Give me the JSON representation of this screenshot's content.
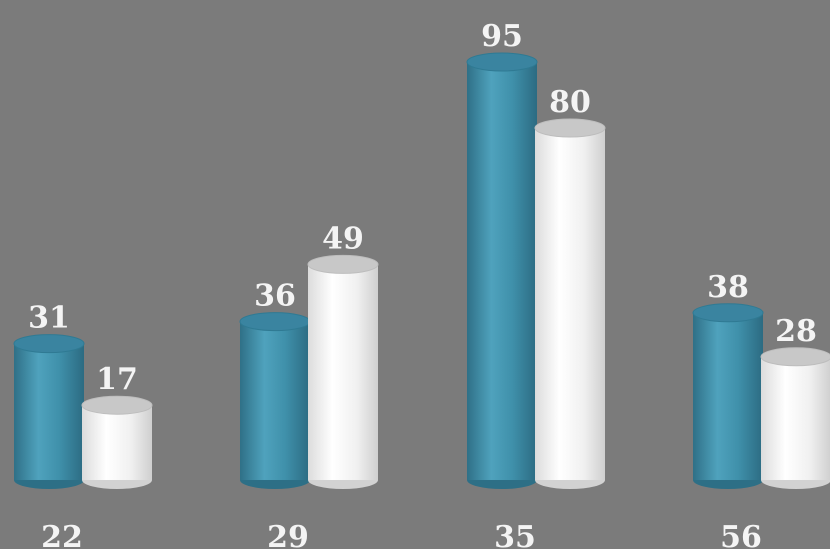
{
  "chart_data": {
    "type": "bar",
    "style": "3d-cylinder",
    "categories": [
      "22",
      "29",
      "35",
      "56"
    ],
    "series": [
      {
        "values": [
          31,
          36,
          95,
          38
        ]
      },
      {
        "values": [
          17,
          49,
          80,
          28
        ]
      }
    ],
    "ylim": [
      0,
      100
    ],
    "grid": false,
    "legend": "none",
    "title": "",
    "xlabel": "",
    "ylabel": ""
  },
  "colors": {
    "background": "#7b7b7b",
    "series_1": "#3e8ca6",
    "series_2": "#f2f2f2",
    "label_text": "#f4f4f4"
  }
}
